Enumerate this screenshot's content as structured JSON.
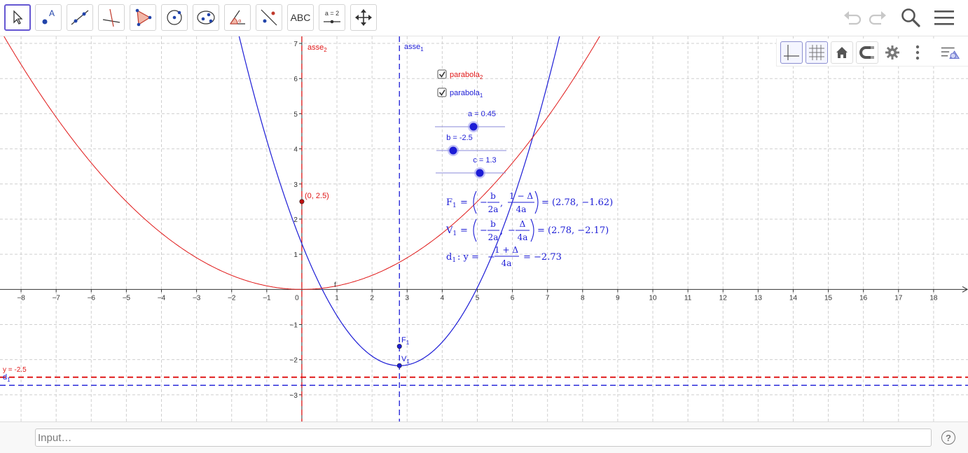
{
  "toolbar": {
    "tools": [
      {
        "name": "move-tool",
        "icon": "arrow-cursor-icon",
        "active": true
      },
      {
        "name": "point-tool",
        "icon": "point-icon",
        "label": "A"
      },
      {
        "name": "line-tool",
        "icon": "line-icon"
      },
      {
        "name": "perpendicular-line-tool",
        "icon": "perpendicular-icon"
      },
      {
        "name": "polygon-tool",
        "icon": "polygon-icon"
      },
      {
        "name": "circle-tool",
        "icon": "circle-icon"
      },
      {
        "name": "conic-tool",
        "icon": "ellipse-icon"
      },
      {
        "name": "angle-tool",
        "icon": "angle-icon",
        "label": "α"
      },
      {
        "name": "reflect-tool",
        "icon": "reflect-icon"
      },
      {
        "name": "text-tool",
        "icon": "text-icon",
        "label": "ABC"
      },
      {
        "name": "slider-tool",
        "icon": "slider-icon",
        "label": "a = 2"
      },
      {
        "name": "move-view-tool",
        "icon": "move-graphics-icon"
      }
    ],
    "right": [
      "undo-icon",
      "redo-icon",
      "search-icon",
      "menu-icon"
    ]
  },
  "style_bar": [
    "axes-icon",
    "grid-icon",
    "home-icon",
    "magnet-icon",
    "gear-icon",
    "more-icon",
    "style-toggle-icon"
  ],
  "graphics": {
    "x_range": [
      -8.6,
      18.98
    ],
    "y_range": [
      -3.76,
      7.2
    ],
    "x_ticks": [
      -8,
      -7,
      -6,
      -5,
      -4,
      -3,
      -2,
      -1,
      0,
      1,
      2,
      3,
      4,
      5,
      6,
      7,
      8,
      9,
      10,
      11,
      12,
      13,
      14,
      15,
      16,
      17,
      18
    ],
    "y_ticks": [
      -3,
      -2,
      -1,
      1,
      2,
      3,
      4,
      5,
      6,
      7
    ],
    "origin_label": "0",
    "colors": {
      "blue": "#1c1cd6",
      "red": "#e01818",
      "grid": "#cfcfcf",
      "axis": "#333333"
    },
    "labels": {
      "asse2": "asse",
      "asse2_sub": "2",
      "asse1": "asse",
      "asse1_sub": "1",
      "point_02": "(0, 2.5)",
      "f": "f",
      "F1": "F",
      "F1_sub": "1",
      "V1": "V",
      "V1_sub": "1",
      "y_line": "y = -2.5",
      "d1": "d",
      "d1_sub": "1"
    },
    "checkboxes": [
      {
        "label": "parabola",
        "sub": "2",
        "color": "#e01818",
        "checked": true
      },
      {
        "label": "parabola",
        "sub": "1",
        "color": "#1c1cd6",
        "checked": true
      }
    ],
    "sliders": [
      {
        "label": "a = 0.45",
        "value": 0.45,
        "min": -5,
        "max": 5
      },
      {
        "label": "b = -2.5",
        "value": -2.5,
        "min": -5,
        "max": 5
      },
      {
        "label": "c = 1.3",
        "value": 1.3,
        "min": -5,
        "max": 5
      }
    ],
    "formulas": {
      "F1_lhs": "F",
      "F1_sub": "1",
      "eq": "=",
      "minus": "−",
      "b": "b",
      "two_a": "2a",
      "one_minus_delta": "1 − Δ",
      "four_a": "4a",
      "comma": ",",
      "F1_result": "= (2.78, −1.62)",
      "V1_lhs": "V",
      "V1_sub": "1",
      "delta": "Δ",
      "V1_result": "= (2.78, −2.17)",
      "d1_lhs": "d",
      "d1_sub": "1",
      "d1_mid": ": y =",
      "one_plus_delta": "1 + Δ",
      "d1_result": "= −2.73"
    },
    "objects": {
      "parabola1": {
        "a": 0.45,
        "b": -2.5,
        "c": 1.3
      },
      "parabola2": {
        "focus": [
          0,
          2.5
        ],
        "directrix_y": -2.5
      },
      "F1": [
        2.78,
        -1.62
      ],
      "V1": [
        2.78,
        -2.17
      ],
      "axis1_x": 2.78,
      "axis2_x": 0,
      "d1_y": -2.73,
      "y_line": -2.5
    }
  },
  "input": {
    "placeholder": "Input…"
  },
  "help": {
    "label": "?"
  }
}
